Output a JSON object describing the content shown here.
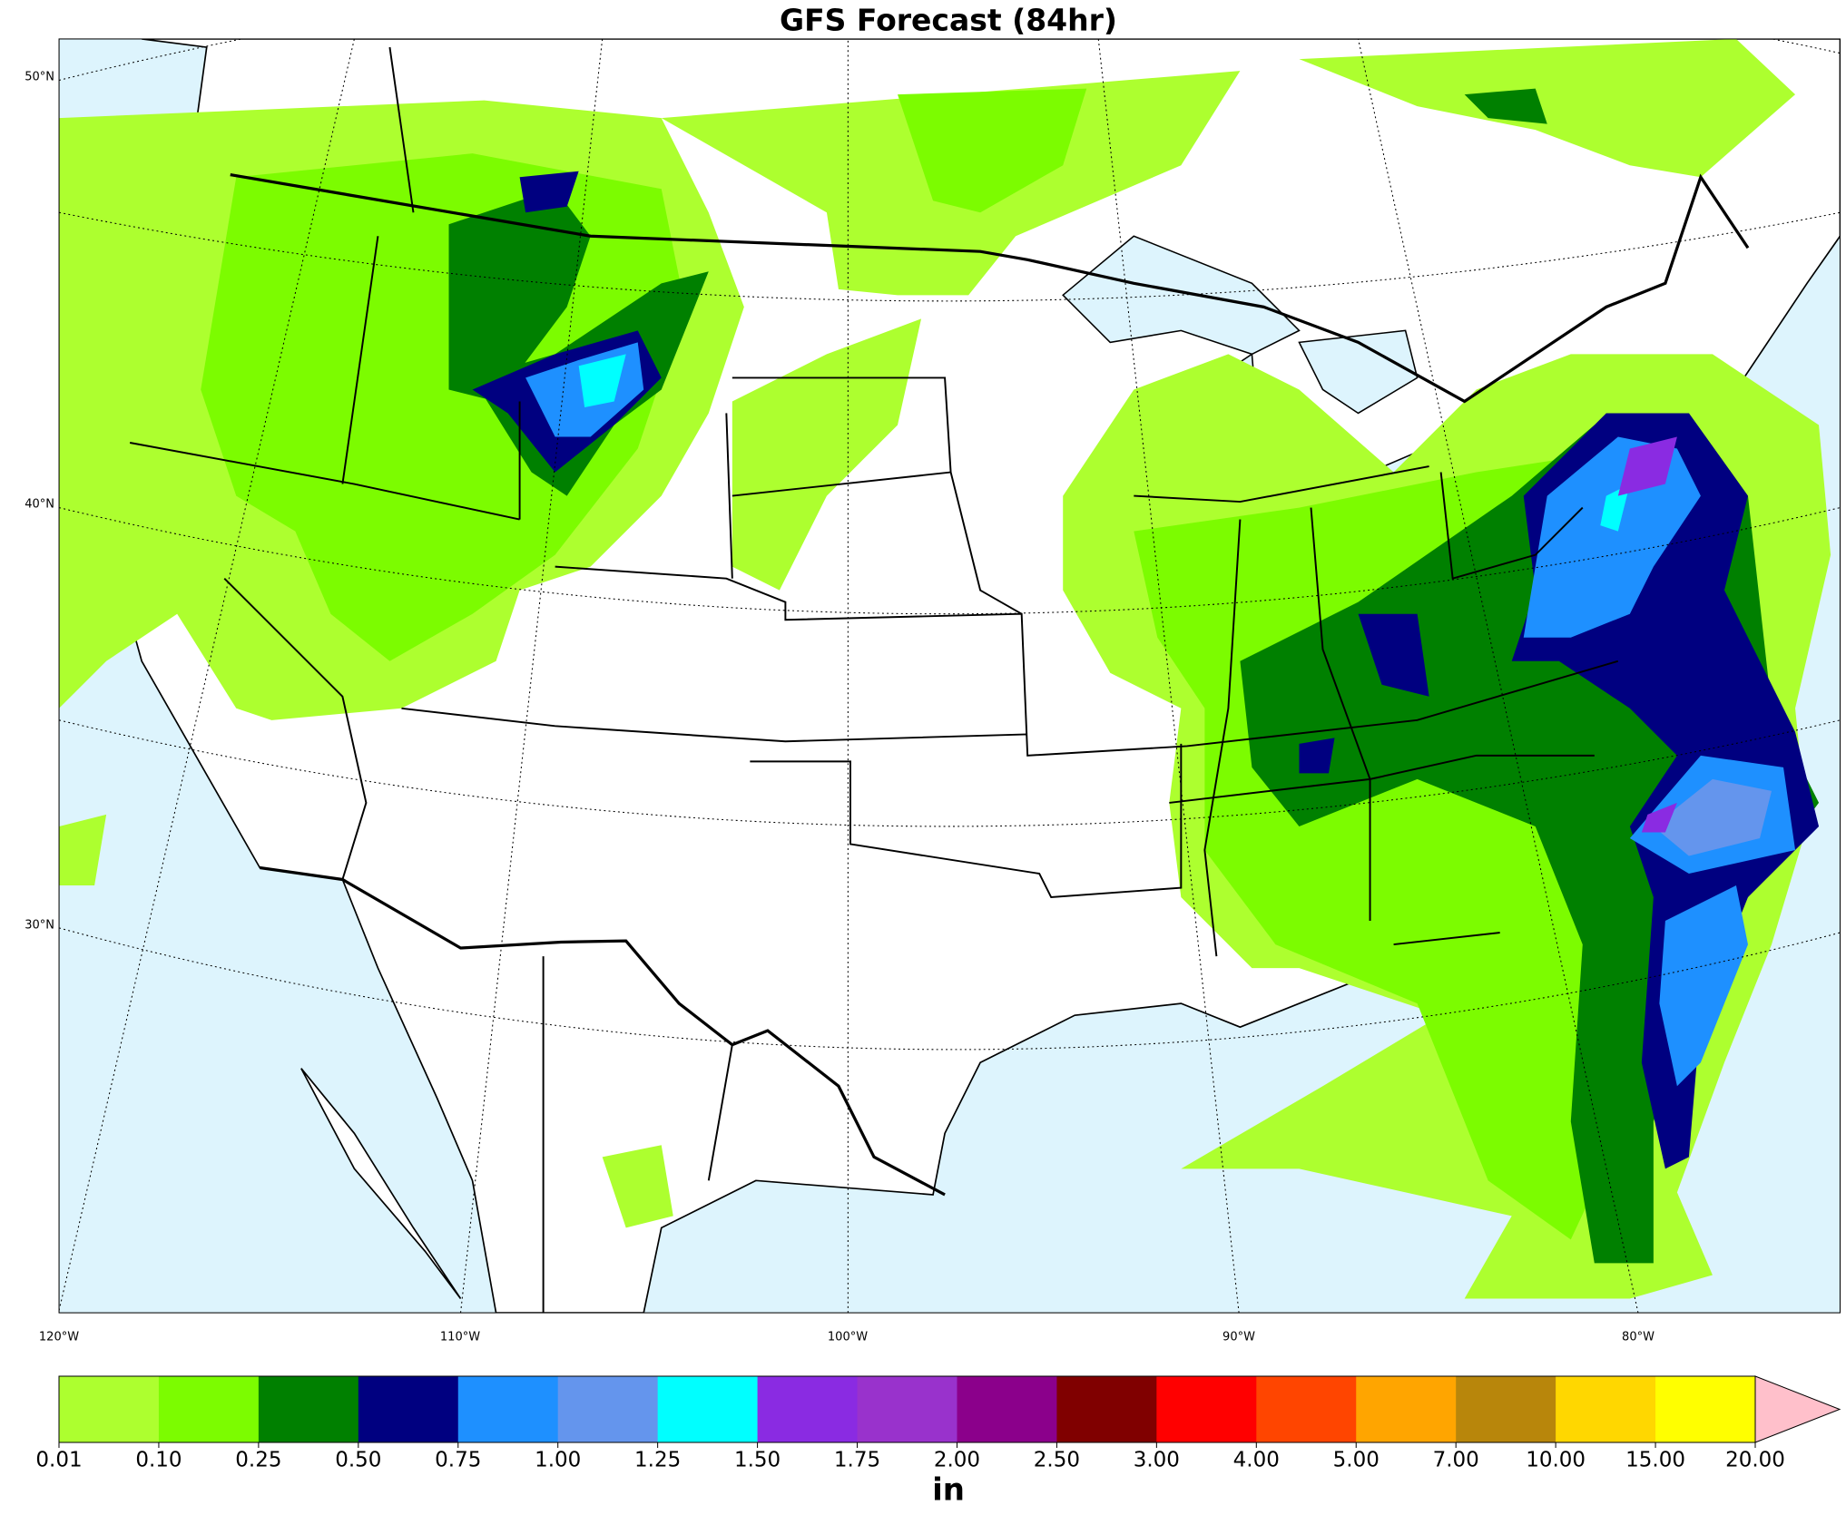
{
  "title": "GFS Forecast (84hr)",
  "map": {
    "lat_labels": [
      "50°N",
      "40°N",
      "30°N"
    ],
    "lon_labels": [
      "120°W",
      "110°W",
      "100°W",
      "90°W",
      "80°W"
    ]
  },
  "colorbar": {
    "unit": "in",
    "levels": [
      0.01,
      {
        "value": 0.1,
        "label": "0.10"
      },
      0.25,
      {
        "value": 0.5,
        "label": "0.50"
      },
      0.75,
      {
        "value": 1,
        "label": "1.00"
      },
      1.25,
      {
        "value": 1.5,
        "label": "1.50"
      },
      1.75,
      {
        "value": 2,
        "label": "2.00"
      },
      {
        "value": 2.5,
        "label": "2.50"
      },
      {
        "value": 3,
        "label": "3.00"
      },
      {
        "value": 4,
        "label": "4.00"
      },
      {
        "value": 5,
        "label": "5.00"
      },
      {
        "value": 7,
        "label": "7.00"
      },
      {
        "value": 10,
        "label": "10.00"
      },
      {
        "value": 15,
        "label": "15.00"
      },
      {
        "value": 20,
        "label": "20.00"
      }
    ],
    "colors": [
      "#adff2f",
      "#7cfc00",
      "#008000",
      "#000080",
      "#1e90ff",
      "#6495ed",
      "#00ffff",
      "#8a2be2",
      "#9932cc",
      "#8b008b",
      "#800000",
      "#ff0000",
      "#ff4500",
      "#ffa500",
      "#b8860b",
      "#ffd700",
      "#ffff00"
    ],
    "extend_color": "#ffc0cb"
  }
}
